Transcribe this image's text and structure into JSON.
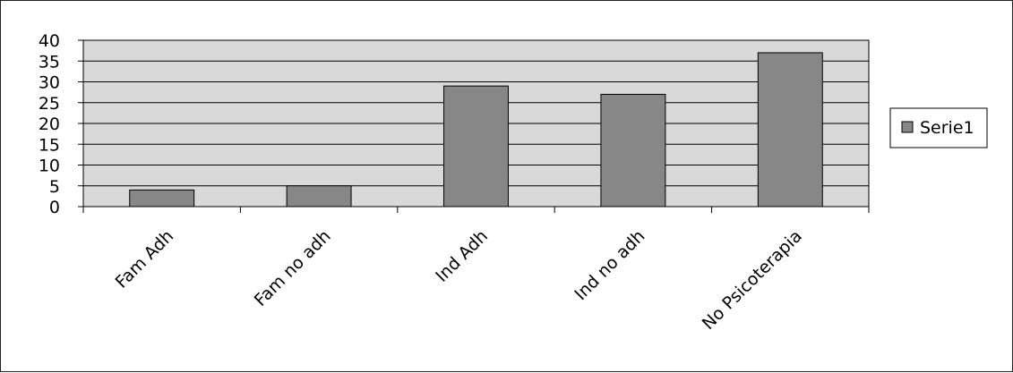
{
  "chart_data": {
    "type": "bar",
    "categories": [
      "Fam Adh",
      "Fam no adh",
      "Ind Adh",
      "Ind no adh",
      "No Psicoterapia"
    ],
    "series": [
      {
        "name": "Serie1",
        "values": [
          4,
          5,
          29,
          27,
          37
        ]
      }
    ],
    "ylim": [
      0,
      40
    ],
    "yticks": [
      "0",
      "5",
      "10",
      "15",
      "20",
      "25",
      "30",
      "35",
      "40"
    ],
    "grid": true,
    "legend": "right",
    "colors": {
      "bar_fill": "#878787",
      "plot_background": "#d9d9d9",
      "gridline": "#000000"
    }
  }
}
